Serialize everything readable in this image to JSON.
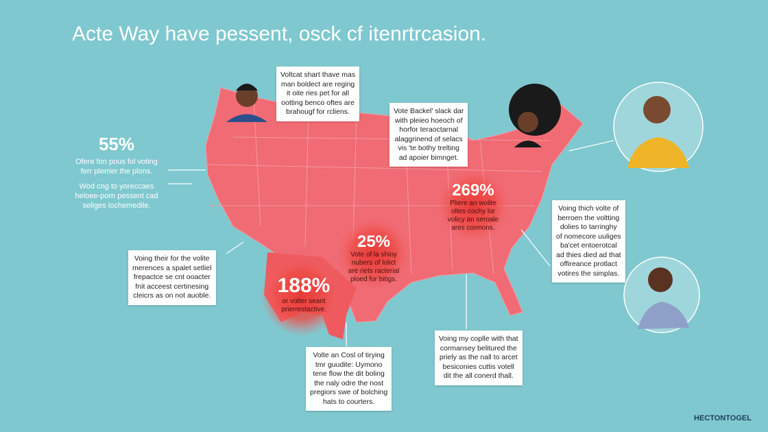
{
  "title": "Acte Way have pessent, osck cf itenrtrcasion.",
  "stat": {
    "value": "55%",
    "lines": [
      "Ofere fon pous fol voting",
      "ferr plerrier the plons.",
      "Wod cng to yoreccaes",
      "heloee-porn pessent cad",
      "seliges lochemedile."
    ]
  },
  "callouts": [
    {
      "lines": [
        "Voltcat shart thave mas",
        "man boldect are reging",
        "it oite ries pet for all",
        "ootting benco oftes are",
        "brahougf for rcliens."
      ]
    },
    {
      "lines": [
        "Vote Backel' slack dar",
        "with pleieo hoeoch of",
        "horfor teraoctarnal",
        "alaggrinend of selacs",
        "vis 'te bothy trelting",
        "ad apoier bimnget."
      ]
    },
    {
      "lines": [
        "Voing their for the volite",
        "merences a spalet setliel",
        "frepactce se cnt ooacter",
        "fnit acceest certinesing",
        "cleicrs as on not auoble."
      ]
    },
    {
      "lines": [
        "Voing thich volte of",
        "berroen the voltting",
        "dolies to tarringhy",
        "of nomecore uuliges",
        "ba'cet entoerotcal",
        "ad thies died ad that",
        "offireance protlact",
        "votires the simplas."
      ]
    },
    {
      "lines": [
        "Volte an Cosl of tirying",
        "tmr guudite: Uymono",
        "tene flow the dit boling",
        "the naly odre the nost",
        "pregiors swe of bolching",
        "hats to courters."
      ]
    },
    {
      "lines": [
        "Voing my coplle with that",
        "cormansey belitured the",
        "priely as the nall to arcet",
        "besiconies cuttis votell",
        "dit the all conerd thall."
      ]
    }
  ],
  "hotspots": [
    {
      "value": "269%",
      "lines": [
        "Pliere an wolite",
        "oltes cochy lor",
        "volicy an seroale",
        "ares cormons."
      ]
    },
    {
      "value": "25%",
      "lines": [
        "Vote of la shioy",
        "nubers of lolict",
        "are riets racterial",
        "ploed for bitigs."
      ]
    },
    {
      "value": "188%",
      "lines": [
        "or volter seant",
        "prierrestactive."
      ]
    }
  ],
  "brand": "HECTONTOGEL"
}
